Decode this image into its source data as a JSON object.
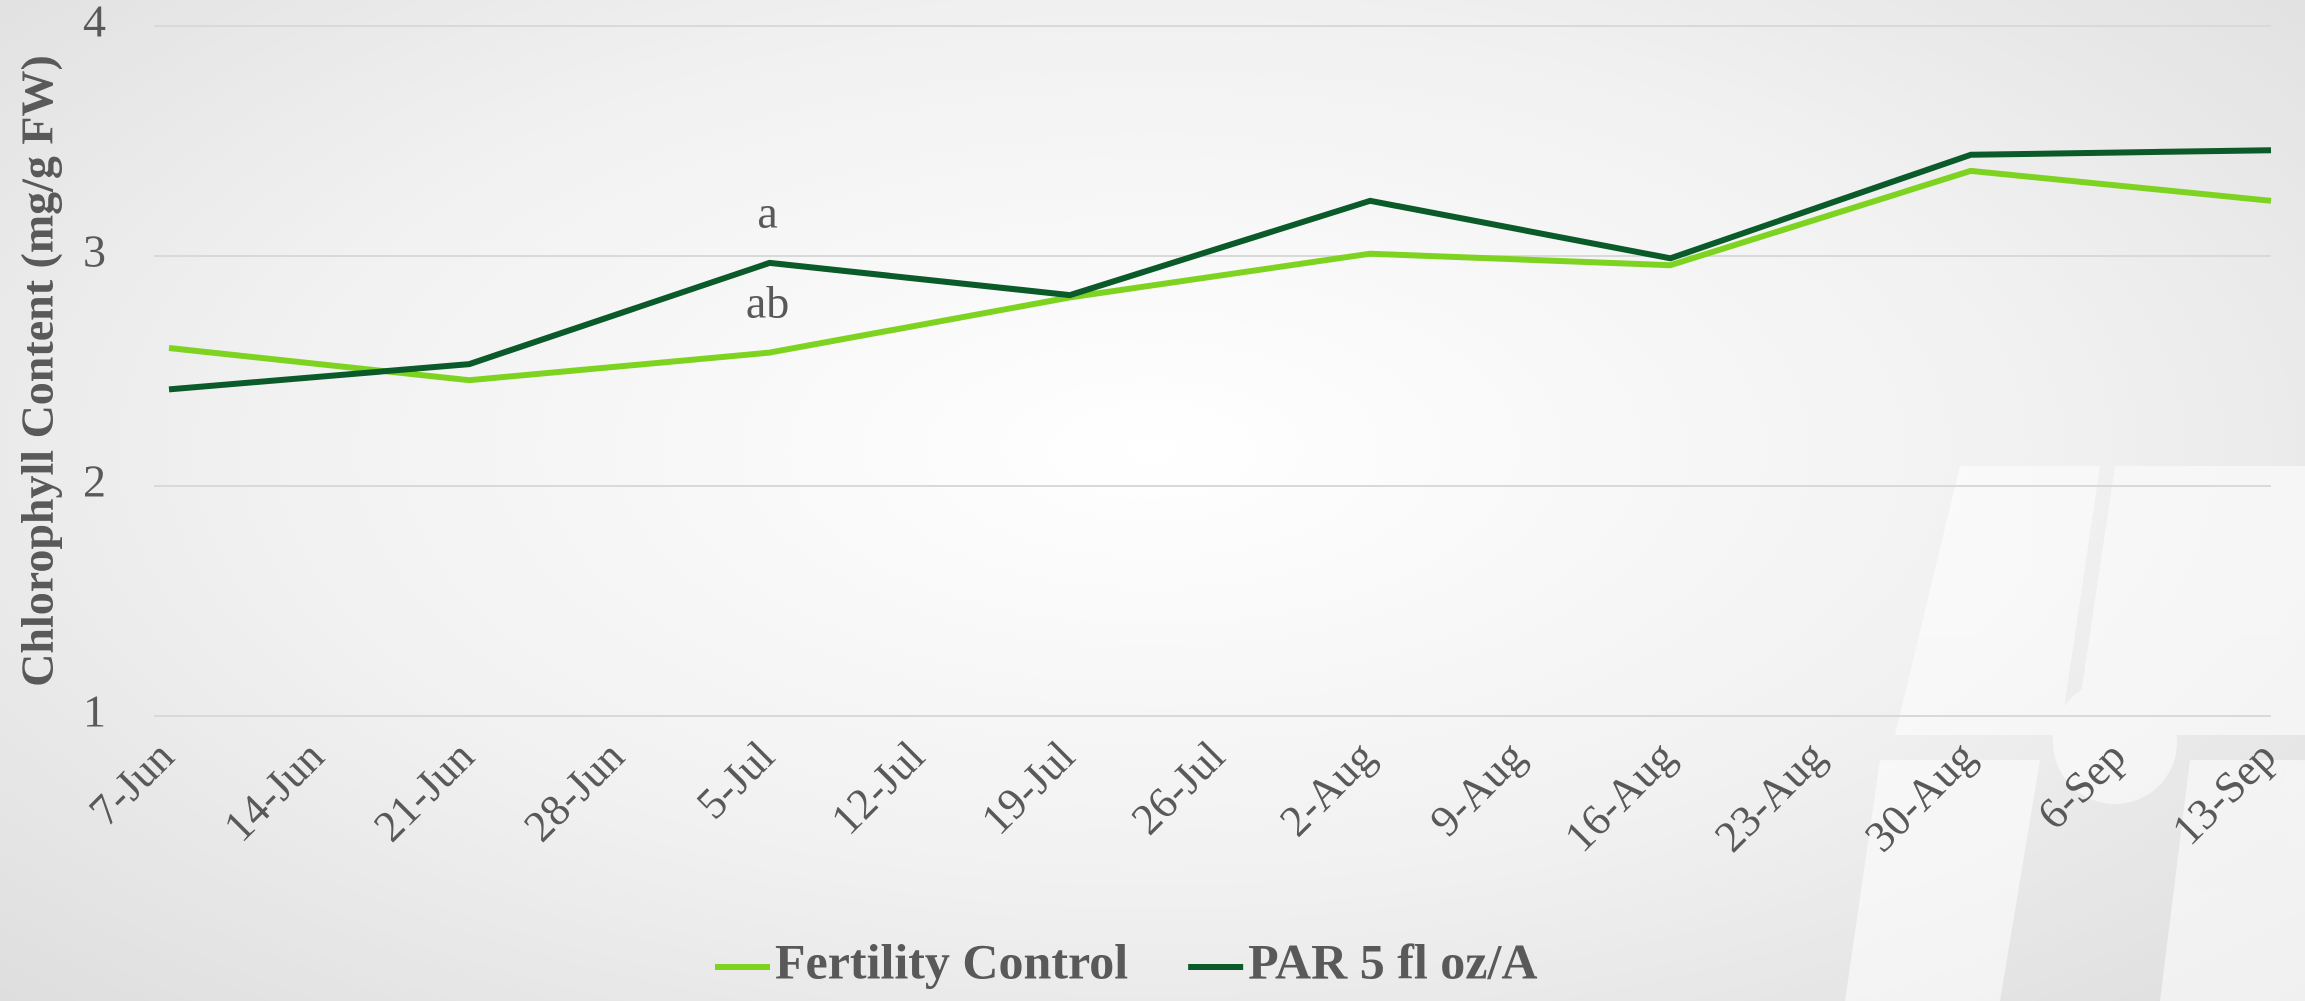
{
  "chart_data": {
    "type": "line",
    "y_label": "Chlorophyll Content (mg/g FW)",
    "xticks": [
      "7-Jun",
      "14-Jun",
      "21-Jun",
      "28-Jun",
      "5-Jul",
      "12-Jul",
      "19-Jul",
      "26-Jul",
      "2-Aug",
      "9-Aug",
      "16-Aug",
      "23-Aug",
      "30-Aug",
      "6-Sep",
      "13-Sep"
    ],
    "x": [
      "7-Jun",
      "21-Jun",
      "5-Jul",
      "19-Jul",
      "2-Aug",
      "16-Aug",
      "30-Aug",
      "13-Sep"
    ],
    "series": [
      {
        "name": "Fertility Control",
        "color": "#7ed321",
        "values": [
          2.6,
          2.46,
          2.58,
          2.82,
          3.01,
          2.96,
          3.37,
          3.24
        ]
      },
      {
        "name": "PAR 5 fl oz/A",
        "color": "#0b5a2a",
        "values": [
          2.42,
          2.53,
          2.97,
          2.83,
          3.24,
          2.99,
          3.44,
          3.46
        ]
      }
    ],
    "annotations": [
      {
        "text": "a",
        "x": "5-Jul"
      },
      {
        "text": "ab",
        "x": "5-Jul"
      }
    ],
    "ylim": [
      1,
      4
    ],
    "yticks": [
      1,
      2,
      3,
      4
    ],
    "grid": true,
    "legend": "bottom"
  }
}
